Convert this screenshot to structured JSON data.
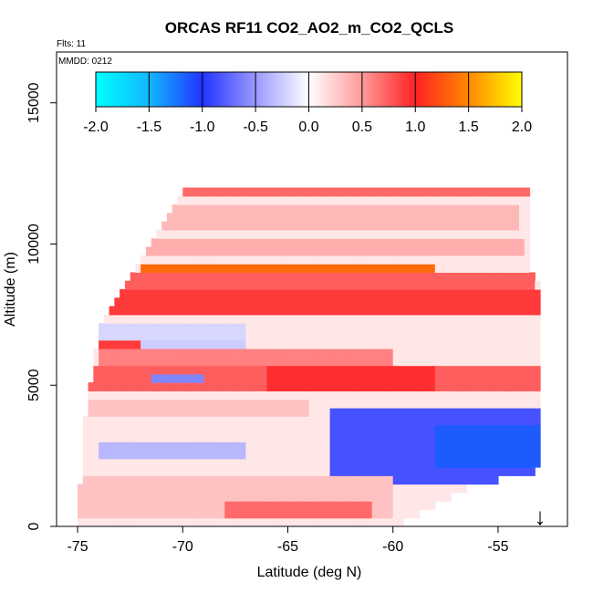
{
  "chart_data": {
    "type": "heatmap",
    "title": "ORCAS RF11 CO2_AO2_m_CO2_QCLS",
    "annotations": [
      "Flts: 11",
      "MMDD: 0212"
    ],
    "xlabel": "Latitude (deg N)",
    "ylabel": "Altitude (m)",
    "xlim": [
      -76.0,
      -51.7
    ],
    "ylim": [
      0,
      16800
    ],
    "x_ticks": [
      -75,
      -70,
      -65,
      -60,
      -55
    ],
    "y_ticks": [
      0,
      5000,
      10000,
      15000
    ],
    "colorbar": {
      "range": [
        -2.0,
        2.0
      ],
      "ticks": [
        "-2.0",
        "-1.5",
        "-1.0",
        "-0.5",
        "0.0",
        "0.5",
        "1.0",
        "1.5",
        "2.0"
      ],
      "colors": {
        "-2.0": "#00ffff",
        "-1.5": "#11b8ff",
        "-1.0": "#2233ff",
        "-0.5": "#9999ff",
        "0.0": "#ffffff",
        "0.5": "#ff9999",
        "1.0": "#ff2222",
        "1.5": "#ff8800",
        "2.0": "#ffff00"
      }
    },
    "domain": {
      "lat_min": -75.0,
      "lat_max": -53.0,
      "top_altitude": [
        [
          -75.0,
          500
        ],
        [
          -74.6,
          4000
        ],
        [
          -74.0,
          6800
        ],
        [
          -73.5,
          7800
        ],
        [
          -72.5,
          8800
        ],
        [
          -71.0,
          10500
        ],
        [
          -70.0,
          12000
        ],
        [
          -53.6,
          12000
        ],
        [
          -53.6,
          9300
        ],
        [
          -53.0,
          8500
        ],
        [
          -53.0,
          0
        ]
      ],
      "bottom_altitude": [
        [
          -75.0,
          0
        ],
        [
          -60.0,
          0
        ],
        [
          -56.0,
          1500
        ],
        [
          -53.0,
          2000
        ]
      ]
    },
    "layers": [
      {
        "lat": [
          -74.0,
          -53.6
        ],
        "alt": [
          11700,
          12050
        ],
        "value": 0.7
      },
      {
        "lat": [
          -73.0,
          -54.0
        ],
        "alt": [
          10500,
          11300
        ],
        "value": 0.35
      },
      {
        "lat": [
          -74.5,
          -53.8
        ],
        "alt": [
          9500,
          10300
        ],
        "value": 0.4
      },
      {
        "lat": [
          -74.0,
          -53.2
        ],
        "alt": [
          8400,
          9100
        ],
        "value": 0.75
      },
      {
        "lat": [
          -72.0,
          -58.0
        ],
        "alt": [
          8900,
          9200
        ],
        "value": 1.35
      },
      {
        "lat": [
          -73.5,
          -53.0
        ],
        "alt": [
          7600,
          8300
        ],
        "value": 0.9
      },
      {
        "lat": [
          -74.5,
          -67.0
        ],
        "alt": [
          6400,
          7300
        ],
        "value": -0.2
      },
      {
        "lat": [
          -74.0,
          -60.0
        ],
        "alt": [
          5800,
          6300
        ],
        "value": 0.6
      },
      {
        "lat": [
          -74.0,
          -70.0
        ],
        "alt": [
          6350,
          6600
        ],
        "value": 0.9
      },
      {
        "lat": [
          -72.0,
          -67.0
        ],
        "alt": [
          6300,
          6700
        ],
        "value": -0.25
      },
      {
        "lat": [
          -74.5,
          -53.0
        ],
        "alt": [
          4700,
          5700
        ],
        "value": 0.75
      },
      {
        "lat": [
          -71.5,
          -69.0
        ],
        "alt": [
          5000,
          5300
        ],
        "value": -0.6
      },
      {
        "lat": [
          -66.0,
          -58.0
        ],
        "alt": [
          4900,
          5600
        ],
        "value": 0.95
      },
      {
        "lat": [
          -75.0,
          -64.0
        ],
        "alt": [
          3800,
          4600
        ],
        "value": 0.3
      },
      {
        "lat": [
          -74.0,
          -67.0
        ],
        "alt": [
          2300,
          3100
        ],
        "value": -0.35
      },
      {
        "lat": [
          -63.0,
          -53.0
        ],
        "alt": [
          1600,
          4300
        ],
        "value": -0.85
      },
      {
        "lat": [
          -58.0,
          -53.0
        ],
        "alt": [
          2000,
          3600
        ],
        "value": -1.15
      },
      {
        "lat": [
          -75.0,
          -60.0
        ],
        "alt": [
          300,
          1800
        ],
        "value": 0.3
      },
      {
        "lat": [
          -68.0,
          -61.0
        ],
        "alt": [
          400,
          800
        ],
        "value": 0.7
      }
    ],
    "marker": {
      "label": "↓",
      "lat": -53.0
    }
  }
}
